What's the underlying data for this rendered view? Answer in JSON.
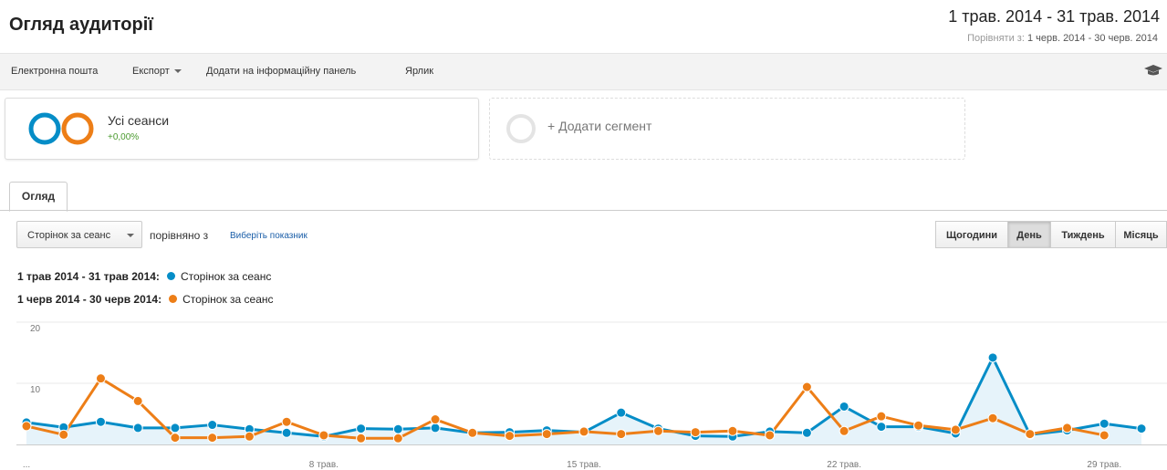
{
  "header": {
    "title": "Огляд аудиторії",
    "date_range": "1 трав. 2014 - 31 трав. 2014",
    "compare_label": "Порівняти з:",
    "compare_range": "1 черв. 2014 - 30 черв. 2014"
  },
  "toolbar": {
    "email": "Електронна пошта",
    "export": "Експорт",
    "add_dashboard": "Додати на інформаційну панель",
    "shortcut": "Ярлик"
  },
  "segments": {
    "all_sessions": "Усі сеанси",
    "change": "+0,00%",
    "add_segment": "+ Додати сегмент"
  },
  "tabs": {
    "overview": "Огляд"
  },
  "controls": {
    "metric": "Сторінок за сеанс",
    "compare_with": "порівняно з",
    "choose_metric": "Виберіть показник",
    "granularity": [
      "Щогодини",
      "День",
      "Тиждень",
      "Місяць"
    ],
    "active_granularity": "День"
  },
  "legend": [
    {
      "range": "1 трав 2014 - 31 трав 2014:",
      "metric": "Сторінок за сеанс",
      "color": "#058dc7"
    },
    {
      "range": "1 черв 2014 - 30 черв 2014:",
      "metric": "Сторінок за сеанс",
      "color": "#ed7e17"
    }
  ],
  "chart_data": {
    "type": "line",
    "y_ticks": [
      "20",
      "10"
    ],
    "ylim": [
      0,
      20
    ],
    "x_ticks": [
      "...",
      "8 трав.",
      "15 трав.",
      "22 трав.",
      "29 трав."
    ],
    "x_tick_days": [
      0,
      8,
      15,
      22,
      29
    ],
    "grid": true,
    "series": [
      {
        "name": "1 трав 2014 - 31 трав 2014",
        "color": "#058dc7",
        "fill": "#e6f3fa",
        "values": [
          3.6,
          2.8,
          3.7,
          2.7,
          2.7,
          3.2,
          2.5,
          1.9,
          1.3,
          2.6,
          2.5,
          2.7,
          1.9,
          2.0,
          2.3,
          2.0,
          5.2,
          2.6,
          1.4,
          1.3,
          2.1,
          1.9,
          6.2,
          2.9,
          2.9,
          1.8,
          14.2,
          1.6,
          2.3,
          3.4,
          2.6
        ]
      },
      {
        "name": "1 черв 2014 - 30 черв 2014",
        "color": "#ed7e17",
        "values": [
          3.0,
          1.6,
          10.8,
          7.1,
          1.1,
          1.1,
          1.3,
          3.7,
          1.5,
          1.0,
          1.0,
          4.1,
          1.9,
          1.4,
          1.7,
          2.1,
          1.7,
          2.2,
          2.0,
          2.2,
          1.5,
          9.4,
          2.2,
          4.6,
          3.1,
          2.4,
          4.3,
          1.7,
          2.7,
          1.5
        ]
      }
    ]
  }
}
